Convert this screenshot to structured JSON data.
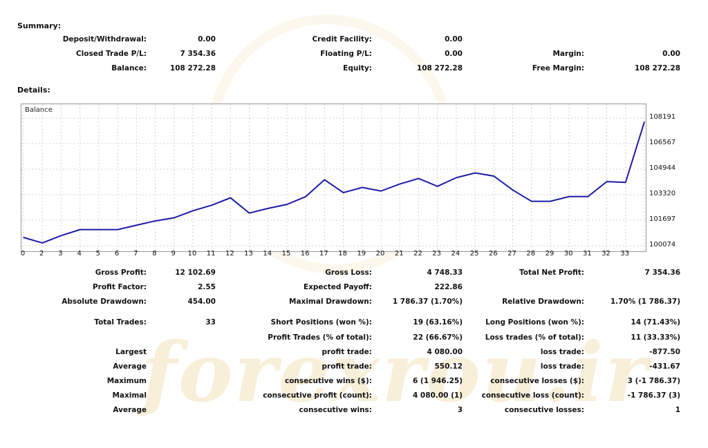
{
  "summary": {
    "title": "Summary:",
    "rows": [
      [
        [
          "Deposit/Withdrawal:",
          "0.00"
        ],
        [
          "Credit Facility:",
          "0.00"
        ],
        [
          "",
          ""
        ]
      ],
      [
        [
          "Closed Trade P/L:",
          "7 354.36"
        ],
        [
          "Floating P/L:",
          "0.00"
        ],
        [
          "Margin:",
          "0.00"
        ]
      ],
      [
        [
          "Balance:",
          "108 272.28"
        ],
        [
          "Equity:",
          "108 272.28"
        ],
        [
          "Free Margin:",
          "108 272.28"
        ]
      ]
    ]
  },
  "details": {
    "title": "Details:"
  },
  "watermark": {
    "logo_text": "forexrou.ir"
  },
  "chart_data": {
    "type": "line",
    "title": "Balance",
    "x": [
      0,
      1,
      2,
      3,
      4,
      5,
      6,
      7,
      8,
      9,
      10,
      11,
      12,
      13,
      14,
      15,
      16,
      17,
      18,
      19,
      20,
      21,
      22,
      23,
      24,
      25,
      26,
      27,
      28,
      29,
      30,
      31,
      32,
      33
    ],
    "x_tick_labels": [
      "0",
      "2",
      "3",
      "4",
      "5",
      "6",
      "7",
      "8",
      "9",
      "10",
      "11",
      "12",
      "13",
      "14",
      "15",
      "16",
      "17",
      "18",
      "19",
      "20",
      "21",
      "22",
      "23",
      "24",
      "25",
      "26",
      "27",
      "28",
      "29",
      "30",
      "31",
      "32",
      "33"
    ],
    "y_tick_labels": [
      "108191",
      "106567",
      "104944",
      "103320",
      "101697",
      "100074"
    ],
    "ylim": [
      100074,
      108191
    ],
    "values": [
      100600,
      100250,
      100720,
      101100,
      101100,
      101100,
      101380,
      101650,
      101850,
      102300,
      102650,
      103120,
      102150,
      102450,
      102700,
      103200,
      104270,
      103450,
      103780,
      103550,
      104000,
      104350,
      103850,
      104400,
      104700,
      104500,
      103620,
      102900,
      102900,
      103200,
      103200,
      104150,
      104100,
      107950
    ],
    "series_color": "#1a1aa8",
    "grid": true
  },
  "stats": {
    "rows": [
      [
        [
          "Gross Profit:",
          "12 102.69"
        ],
        [
          "Gross Loss:",
          "4 748.33"
        ],
        [
          "Total Net Profit:",
          "7 354.36"
        ]
      ],
      [
        [
          "Profit Factor:",
          "2.55"
        ],
        [
          "Expected Payoff:",
          "222.86"
        ],
        [
          "",
          ""
        ]
      ],
      [
        [
          "Absolute Drawdown:",
          "454.00"
        ],
        [
          "Maximal Drawdown:",
          "1 786.37 (1.70%)"
        ],
        [
          "Relative Drawdown:",
          "1.70% (1 786.37)"
        ]
      ],
      [
        [
          "Total Trades:",
          "33"
        ],
        [
          "Short Positions (won %):",
          "19 (63.16%)"
        ],
        [
          "Long Positions (won %):",
          "14 (71.43%)"
        ]
      ],
      [
        [
          "",
          ""
        ],
        [
          "Profit Trades (% of total):",
          "22 (66.67%)"
        ],
        [
          "Loss trades (% of total):",
          "11 (33.33%)"
        ]
      ],
      [
        [
          "Largest",
          ""
        ],
        [
          "profit trade:",
          "4 080.00"
        ],
        [
          "loss trade:",
          "-877.50"
        ]
      ],
      [
        [
          "Average",
          ""
        ],
        [
          "profit trade:",
          "550.12"
        ],
        [
          "loss trade:",
          "-431.67"
        ]
      ],
      [
        [
          "Maximum",
          ""
        ],
        [
          "consecutive wins ($):",
          "6 (1 946.25)"
        ],
        [
          "consecutive losses ($):",
          "3 (-1 786.37)"
        ]
      ],
      [
        [
          "Maximal",
          ""
        ],
        [
          "consecutive profit (count):",
          "4 080.00 (1)"
        ],
        [
          "consecutive loss (count):",
          "-1 786.37 (3)"
        ]
      ],
      [
        [
          "Average",
          ""
        ],
        [
          "consecutive wins:",
          "3"
        ],
        [
          "consecutive losses:",
          "1"
        ]
      ]
    ]
  }
}
